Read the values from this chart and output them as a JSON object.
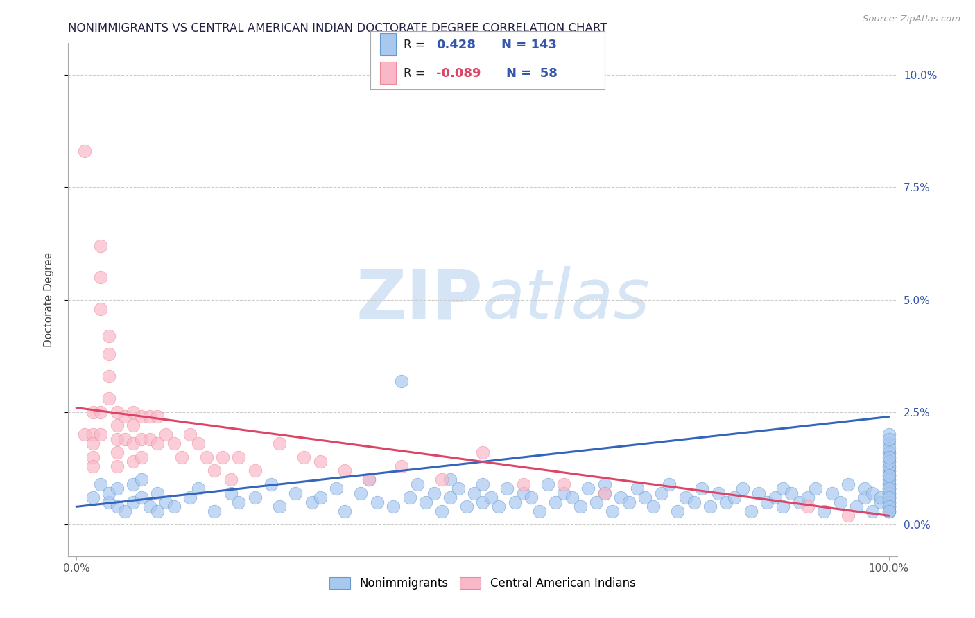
{
  "title": "NONIMMIGRANTS VS CENTRAL AMERICAN INDIAN DOCTORATE DEGREE CORRELATION CHART",
  "source": "Source: ZipAtlas.com",
  "ylabel": "Doctorate Degree",
  "xlim": [
    -0.01,
    1.01
  ],
  "ylim": [
    -0.007,
    0.107
  ],
  "yticks": [
    0.0,
    0.025,
    0.05,
    0.075,
    0.1
  ],
  "ytick_labels": [
    "0.0%",
    "2.5%",
    "5.0%",
    "7.5%",
    "10.0%"
  ],
  "xtick_labels_edge": [
    "0.0%",
    "100.0%"
  ],
  "blue_R": 0.428,
  "blue_N": 143,
  "pink_R": -0.089,
  "pink_N": 58,
  "blue_fill": "#A8C8F0",
  "pink_fill": "#F8B8C8",
  "blue_edge": "#6699CC",
  "pink_edge": "#EE8899",
  "blue_line": "#3366BB",
  "pink_line": "#DD4466",
  "watermark_zip": "ZIP",
  "watermark_atlas": "atlas",
  "watermark_color": "#D5E5F5",
  "blue_trend_x0": 0.0,
  "blue_trend_y0": 0.004,
  "blue_trend_x1": 1.0,
  "blue_trend_y1": 0.024,
  "pink_trend_x0": 0.0,
  "pink_trend_y0": 0.026,
  "pink_trend_x1": 1.0,
  "pink_trend_y1": 0.002,
  "blue_x": [
    0.02,
    0.03,
    0.04,
    0.04,
    0.05,
    0.05,
    0.06,
    0.07,
    0.07,
    0.08,
    0.08,
    0.09,
    0.1,
    0.1,
    0.11,
    0.12,
    0.14,
    0.15,
    0.17,
    0.19,
    0.2,
    0.22,
    0.24,
    0.25,
    0.27,
    0.29,
    0.3,
    0.32,
    0.33,
    0.35,
    0.36,
    0.37,
    0.39,
    0.4,
    0.41,
    0.42,
    0.43,
    0.44,
    0.45,
    0.46,
    0.46,
    0.47,
    0.48,
    0.49,
    0.5,
    0.5,
    0.51,
    0.52,
    0.53,
    0.54,
    0.55,
    0.56,
    0.57,
    0.58,
    0.59,
    0.6,
    0.61,
    0.62,
    0.63,
    0.64,
    0.65,
    0.65,
    0.66,
    0.67,
    0.68,
    0.69,
    0.7,
    0.71,
    0.72,
    0.73,
    0.74,
    0.75,
    0.76,
    0.77,
    0.78,
    0.79,
    0.8,
    0.81,
    0.82,
    0.83,
    0.84,
    0.85,
    0.86,
    0.87,
    0.87,
    0.88,
    0.89,
    0.9,
    0.91,
    0.92,
    0.93,
    0.94,
    0.95,
    0.96,
    0.97,
    0.97,
    0.98,
    0.98,
    0.99,
    0.99,
    1.0,
    1.0,
    1.0,
    1.0,
    1.0,
    1.0,
    1.0,
    1.0,
    1.0,
    1.0,
    1.0,
    1.0,
    1.0,
    1.0,
    1.0,
    1.0,
    1.0,
    1.0,
    1.0,
    1.0,
    1.0,
    1.0,
    1.0,
    1.0,
    1.0,
    1.0,
    1.0,
    1.0,
    1.0,
    1.0,
    1.0,
    1.0,
    1.0,
    1.0,
    1.0,
    1.0,
    1.0,
    1.0,
    1.0,
    1.0,
    1.0,
    1.0,
    1.0
  ],
  "blue_y": [
    0.006,
    0.009,
    0.005,
    0.007,
    0.004,
    0.008,
    0.003,
    0.005,
    0.009,
    0.006,
    0.01,
    0.004,
    0.003,
    0.007,
    0.005,
    0.004,
    0.006,
    0.008,
    0.003,
    0.007,
    0.005,
    0.006,
    0.009,
    0.004,
    0.007,
    0.005,
    0.006,
    0.008,
    0.003,
    0.007,
    0.01,
    0.005,
    0.004,
    0.032,
    0.006,
    0.009,
    0.005,
    0.007,
    0.003,
    0.01,
    0.006,
    0.008,
    0.004,
    0.007,
    0.005,
    0.009,
    0.006,
    0.004,
    0.008,
    0.005,
    0.007,
    0.006,
    0.003,
    0.009,
    0.005,
    0.007,
    0.006,
    0.004,
    0.008,
    0.005,
    0.007,
    0.009,
    0.003,
    0.006,
    0.005,
    0.008,
    0.006,
    0.004,
    0.007,
    0.009,
    0.003,
    0.006,
    0.005,
    0.008,
    0.004,
    0.007,
    0.005,
    0.006,
    0.008,
    0.003,
    0.007,
    0.005,
    0.006,
    0.008,
    0.004,
    0.007,
    0.005,
    0.006,
    0.008,
    0.003,
    0.007,
    0.005,
    0.009,
    0.004,
    0.006,
    0.008,
    0.003,
    0.007,
    0.005,
    0.006,
    0.016,
    0.012,
    0.009,
    0.007,
    0.005,
    0.013,
    0.01,
    0.008,
    0.006,
    0.018,
    0.014,
    0.011,
    0.009,
    0.007,
    0.005,
    0.003,
    0.016,
    0.012,
    0.008,
    0.006,
    0.004,
    0.02,
    0.015,
    0.011,
    0.008,
    0.006,
    0.004,
    0.003,
    0.017,
    0.013,
    0.009,
    0.007,
    0.005,
    0.003,
    0.014,
    0.01,
    0.008,
    0.006,
    0.004,
    0.003,
    0.019,
    0.015,
    0.011
  ],
  "pink_x": [
    0.01,
    0.01,
    0.02,
    0.02,
    0.02,
    0.02,
    0.02,
    0.03,
    0.03,
    0.03,
    0.03,
    0.03,
    0.04,
    0.04,
    0.04,
    0.04,
    0.05,
    0.05,
    0.05,
    0.05,
    0.05,
    0.06,
    0.06,
    0.07,
    0.07,
    0.07,
    0.07,
    0.08,
    0.08,
    0.08,
    0.09,
    0.09,
    0.1,
    0.1,
    0.11,
    0.12,
    0.13,
    0.14,
    0.15,
    0.16,
    0.17,
    0.18,
    0.19,
    0.2,
    0.22,
    0.25,
    0.28,
    0.3,
    0.33,
    0.36,
    0.4,
    0.45,
    0.5,
    0.55,
    0.6,
    0.65,
    0.9,
    0.95
  ],
  "pink_y": [
    0.083,
    0.02,
    0.025,
    0.02,
    0.018,
    0.015,
    0.013,
    0.062,
    0.055,
    0.048,
    0.025,
    0.02,
    0.042,
    0.038,
    0.033,
    0.028,
    0.025,
    0.022,
    0.019,
    0.016,
    0.013,
    0.024,
    0.019,
    0.025,
    0.022,
    0.018,
    0.014,
    0.024,
    0.019,
    0.015,
    0.024,
    0.019,
    0.024,
    0.018,
    0.02,
    0.018,
    0.015,
    0.02,
    0.018,
    0.015,
    0.012,
    0.015,
    0.01,
    0.015,
    0.012,
    0.018,
    0.015,
    0.014,
    0.012,
    0.01,
    0.013,
    0.01,
    0.016,
    0.009,
    0.009,
    0.007,
    0.004,
    0.002
  ],
  "title_fontsize": 12,
  "axis_label_fontsize": 11,
  "tick_fontsize": 11,
  "background_color": "#FFFFFF",
  "legend_text_color": "#3355AA",
  "legend_label_color": "#333333"
}
